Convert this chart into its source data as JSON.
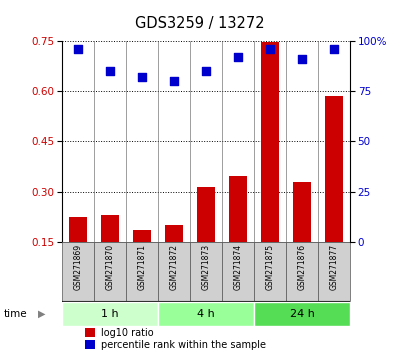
{
  "title": "GDS3259 / 13272",
  "samples": [
    "GSM271869",
    "GSM271870",
    "GSM271871",
    "GSM271872",
    "GSM271873",
    "GSM271874",
    "GSM271875",
    "GSM271876",
    "GSM271877"
  ],
  "log10_ratio": [
    0.225,
    0.23,
    0.185,
    0.2,
    0.315,
    0.345,
    0.745,
    0.33,
    0.585
  ],
  "percentile_rank": [
    96,
    85,
    82,
    80,
    85,
    92,
    96,
    91,
    96
  ],
  "bar_color": "#cc0000",
  "dot_color": "#0000cc",
  "ylim_left": [
    0.15,
    0.75
  ],
  "ylim_right": [
    0,
    100
  ],
  "yticks_left": [
    0.15,
    0.3,
    0.45,
    0.6,
    0.75
  ],
  "yticks_right": [
    0,
    25,
    50,
    75,
    100
  ],
  "groups": [
    {
      "label": "1 h",
      "indices": [
        0,
        1,
        2
      ],
      "color": "#ccffcc"
    },
    {
      "label": "4 h",
      "indices": [
        3,
        4,
        5
      ],
      "color": "#99ff99"
    },
    {
      "label": "24 h",
      "indices": [
        6,
        7,
        8
      ],
      "color": "#55dd55"
    }
  ],
  "time_label": "time",
  "legend_bar_label": "log10 ratio",
  "legend_dot_label": "percentile rank within the sample",
  "background_color": "#ffffff",
  "plot_bg_color": "#ffffff",
  "tick_label_color_left": "#cc0000",
  "tick_label_color_right": "#0000cc",
  "sample_cell_color": "#d0d0d0",
  "cell_border_color": "#555555"
}
